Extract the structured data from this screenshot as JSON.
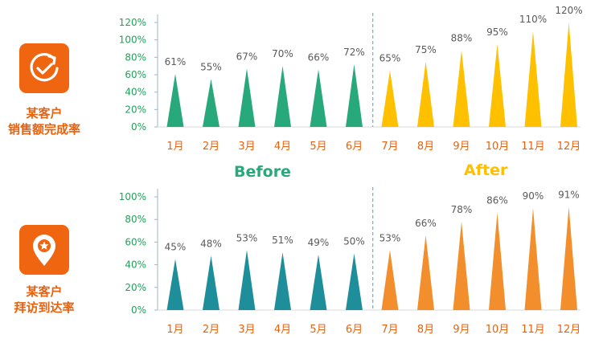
{
  "colors": {
    "before_top": "#27A97B",
    "before_bottom": "#1E8E9B",
    "after_top": "#FFC000",
    "after_bottom": "#F28E2B",
    "axis_text": "#22A05A",
    "month_text": "#E8620E",
    "label_text": "#595959",
    "icon_bg": "#F0650F"
  },
  "sidebar": {
    "top": {
      "icon": "refresh-check-icon",
      "line1": "某客户",
      "line2": "销售额完成率"
    },
    "bottom": {
      "icon": "location-star-icon",
      "line1": "某客户",
      "line2": "拜访到达率"
    }
  },
  "phases": {
    "before": "Before",
    "after": "After"
  },
  "chart_data": [
    {
      "type": "bar",
      "shape": "triangle",
      "categories": [
        "1月",
        "2月",
        "3月",
        "4月",
        "5月",
        "6月",
        "7月",
        "8月",
        "9月",
        "10月",
        "11月",
        "12月"
      ],
      "values": [
        61,
        55,
        67,
        70,
        66,
        72,
        65,
        75,
        88,
        95,
        110,
        120
      ],
      "data_labels": [
        "61%",
        "55%",
        "67%",
        "70%",
        "66%",
        "72%",
        "65%",
        "75%",
        "88%",
        "95%",
        "110%",
        "120%"
      ],
      "yticks": [
        "0%",
        "20%",
        "40%",
        "60%",
        "80%",
        "100%",
        "120%"
      ],
      "ylim": [
        0,
        120
      ],
      "split_after_index": 5,
      "grid": false
    },
    {
      "type": "bar",
      "shape": "triangle",
      "categories": [
        "1月",
        "2月",
        "3月",
        "4月",
        "5月",
        "6月",
        "7月",
        "8月",
        "9月",
        "10月",
        "11月",
        "12月"
      ],
      "values": [
        45,
        48,
        53,
        51,
        49,
        50,
        53,
        66,
        78,
        86,
        90,
        91
      ],
      "data_labels": [
        "45%",
        "48%",
        "53%",
        "51%",
        "49%",
        "50%",
        "53%",
        "66%",
        "78%",
        "86%",
        "90%",
        "91%"
      ],
      "yticks": [
        "0%",
        "20%",
        "40%",
        "60%",
        "80%",
        "100%"
      ],
      "ylim": [
        0,
        100
      ],
      "split_after_index": 5,
      "grid": false
    }
  ]
}
